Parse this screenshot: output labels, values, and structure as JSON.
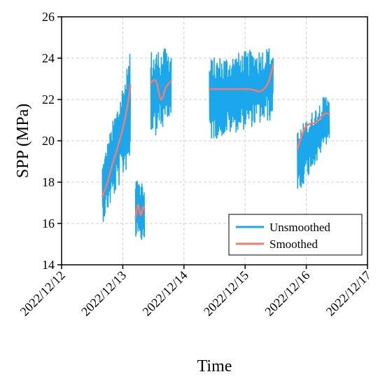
{
  "chart_data": {
    "type": "line",
    "xlabel": "Time",
    "ylabel": "SPP (MPa)",
    "xlim": [
      "2022/12/12",
      "2022/12/17"
    ],
    "ylim": [
      14,
      26
    ],
    "x_ticks": [
      "2022/12/12",
      "2022/12/13",
      "2022/12/14",
      "2022/12/15",
      "2022/12/16",
      "2022/12/17"
    ],
    "y_ticks": [
      14,
      16,
      18,
      20,
      22,
      24,
      26
    ],
    "grid": true,
    "legend_position": "bottom-right",
    "colors": {
      "Unsmoothed": "#1aa7ec",
      "Smoothed": "#f07c72"
    },
    "series": [
      {
        "name": "Unsmoothed",
        "segments": [
          {
            "start": "2022/12/12 16:00",
            "end": "2022/12/13 03:00",
            "low_start": 16.0,
            "low_end": 19.0,
            "high_start": 19.0,
            "high_end": 24.3
          },
          {
            "start": "2022/12/13 05:00",
            "end": "2022/12/13 08:30",
            "low_start": 15.0,
            "low_end": 15.0,
            "high_start": 18.2,
            "high_end": 17.8
          },
          {
            "start": "2022/12/13 11:00",
            "end": "2022/12/13 19:00",
            "low_start": 20.0,
            "low_end": 21.0,
            "high_start": 24.4,
            "high_end": 24.5
          },
          {
            "start": "2022/12/14 10:00",
            "end": "2022/12/15 11:00",
            "low_start": 20.0,
            "low_end": 21.0,
            "high_start": 24.0,
            "high_end": 24.6
          },
          {
            "start": "2022/12/15 20:30",
            "end": "2022/12/16 09:00",
            "low_start": 17.4,
            "low_end": 20.0,
            "high_start": 20.5,
            "high_end": 22.5
          }
        ]
      },
      {
        "name": "Smoothed",
        "segments": [
          {
            "x": [
              "2022/12/12 16:00",
              "2022/12/12 18:00",
              "2022/12/12 20:00",
              "2022/12/12 22:00",
              "2022/12/13 00:00",
              "2022/12/13 02:00",
              "2022/12/13 03:00"
            ],
            "y": [
              17.3,
              18.0,
              18.9,
              19.7,
              20.6,
              21.8,
              22.7
            ]
          },
          {
            "x": [
              "2022/12/13 05:00",
              "2022/12/13 06:00",
              "2022/12/13 07:00",
              "2022/12/13 08:00",
              "2022/12/13 08:30"
            ],
            "y": [
              16.3,
              16.9,
              16.4,
              16.8,
              16.7
            ]
          },
          {
            "x": [
              "2022/12/13 11:00",
              "2022/12/13 13:00",
              "2022/12/13 15:00",
              "2022/12/13 17:00",
              "2022/12/13 19:00"
            ],
            "y": [
              22.8,
              22.9,
              22.0,
              22.6,
              22.9
            ]
          },
          {
            "x": [
              "2022/12/14 10:00",
              "2022/12/14 14:00",
              "2022/12/14 18:00",
              "2022/12/14 22:00",
              "2022/12/15 02:00",
              "2022/12/15 06:00",
              "2022/12/15 09:00",
              "2022/12/15 11:00"
            ],
            "y": [
              22.5,
              22.5,
              22.5,
              22.5,
              22.5,
              22.4,
              22.8,
              23.7
            ]
          },
          {
            "x": [
              "2022/12/15 20:30",
              "2022/12/15 23:00",
              "2022/12/16 01:00",
              "2022/12/16 04:00",
              "2022/12/16 07:00",
              "2022/12/16 09:00"
            ],
            "y": [
              19.6,
              20.5,
              20.8,
              20.9,
              21.3,
              21.3
            ]
          }
        ]
      }
    ]
  }
}
